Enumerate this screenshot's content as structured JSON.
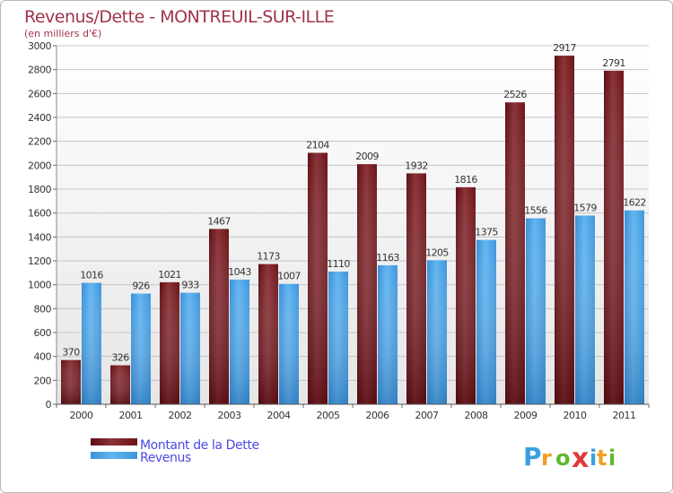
{
  "chart_data": {
    "type": "bar",
    "title": "Revenus/Dette - MONTREUIL-SUR-ILLE",
    "subtitle": "(en milliers d'€)",
    "categories": [
      "2000",
      "2001",
      "2002",
      "2003",
      "2004",
      "2005",
      "2006",
      "2007",
      "2008",
      "2009",
      "2010",
      "2011"
    ],
    "series": [
      {
        "name": "Montant de la Dette",
        "color": "#7a1a1f",
        "values": [
          370,
          326,
          1021,
          1467,
          1173,
          2104,
          2009,
          1932,
          1816,
          2526,
          2917,
          2791
        ]
      },
      {
        "name": "Revenus",
        "color": "#4aa3e6",
        "values": [
          1016,
          926,
          933,
          1043,
          1007,
          1110,
          1163,
          1205,
          1375,
          1556,
          1579,
          1622
        ]
      }
    ],
    "ylim": [
      0,
      3000
    ],
    "ytick_step": 200,
    "grid": true,
    "legend": "bottom-left"
  },
  "brand": {
    "name": "Proxiti",
    "letters": [
      "P",
      "r",
      "o",
      "x",
      "i",
      "t",
      "i"
    ]
  },
  "colors": {
    "title": "#a0344a",
    "legend_text": "#4a4ae0",
    "grid": "#c8c8c8",
    "plot_bg": "#ececec",
    "debt_dark": "#5a0a10",
    "debt_light": "#8a3a40",
    "rev_dark": "#2a80c8",
    "rev_light": "#60b4f0"
  }
}
